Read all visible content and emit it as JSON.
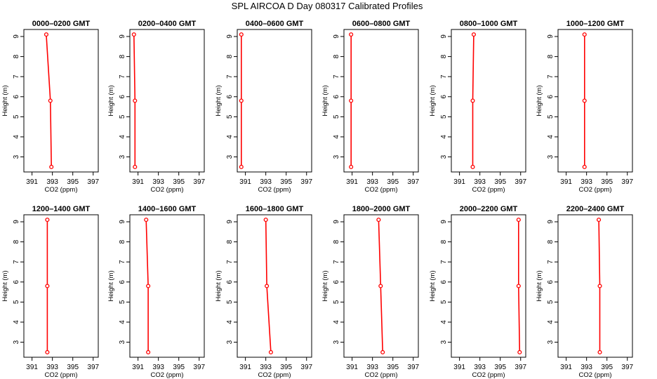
{
  "title": "SPL AIRCOA D  Day 080317  Calibrated Profiles",
  "colors": {
    "profile": "#ff0000",
    "axis": "#000000",
    "background": "#ffffff"
  },
  "chart_data": {
    "type": "line",
    "xlabel": "CO2 (ppm)",
    "ylabel": "Height (m)",
    "xlim": [
      390.2,
      397.5
    ],
    "ylim": [
      2.25,
      9.35
    ],
    "xticks": [
      391,
      393,
      395,
      397
    ],
    "xtick_labels": [
      "391",
      "393",
      "395",
      "397"
    ],
    "yticks": [
      3,
      4,
      5,
      6,
      7,
      8,
      9
    ],
    "ytick_labels": [
      "3",
      "4",
      "5",
      "6",
      "7",
      "8",
      "9"
    ],
    "heights": [
      9.1,
      5.8,
      2.5
    ],
    "grid": false,
    "legend": "none",
    "panels": [
      {
        "title": "0000–0200 GMT",
        "co2": [
          392.4,
          392.8,
          392.9
        ]
      },
      {
        "title": "0200–0400 GMT",
        "co2": [
          390.6,
          390.7,
          390.7
        ]
      },
      {
        "title": "0400–0600 GMT",
        "co2": [
          390.6,
          390.6,
          390.6
        ]
      },
      {
        "title": "0600–0800 GMT",
        "co2": [
          390.9,
          390.9,
          390.9
        ]
      },
      {
        "title": "0800–1000 GMT",
        "co2": [
          392.4,
          392.3,
          392.3
        ]
      },
      {
        "title": "1000–1200 GMT",
        "co2": [
          392.8,
          392.8,
          392.8
        ]
      },
      {
        "title": "1200–1400 GMT",
        "co2": [
          392.5,
          392.5,
          392.5
        ]
      },
      {
        "title": "1400–1600 GMT",
        "co2": [
          391.8,
          392.0,
          392.0
        ]
      },
      {
        "title": "1600–1800 GMT",
        "co2": [
          393.0,
          393.1,
          393.5
        ]
      },
      {
        "title": "1800–2000 GMT",
        "co2": [
          393.6,
          393.8,
          394.0
        ]
      },
      {
        "title": "2000–2200 GMT",
        "co2": [
          396.8,
          396.8,
          396.9
        ]
      },
      {
        "title": "2200–2400 GMT",
        "co2": [
          394.2,
          394.3,
          394.3
        ]
      }
    ]
  }
}
